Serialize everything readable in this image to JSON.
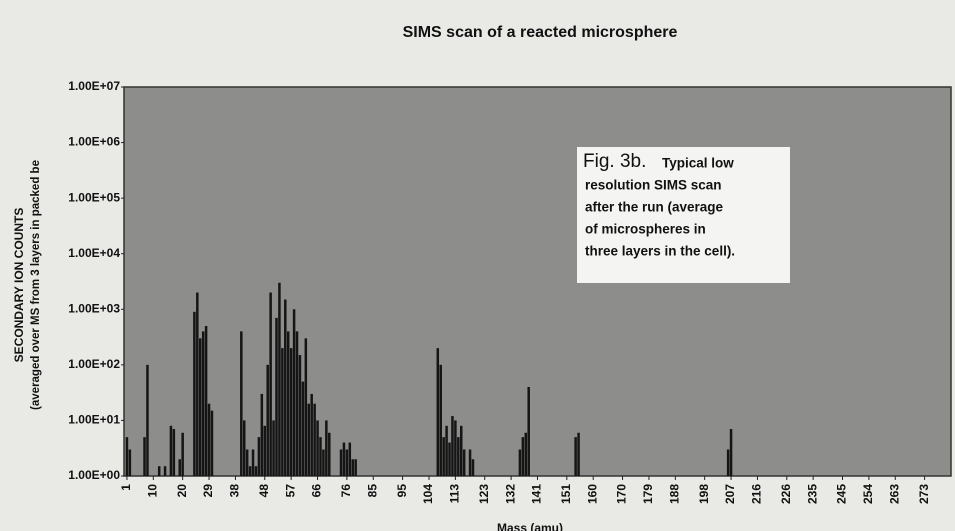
{
  "chart_data": {
    "type": "bar",
    "title": "SIMS scan of a reacted microsphere",
    "y_label": "SECONDARY ION COUNTS",
    "y_label_sub": "(averaged over MS from 3 layers in packed be",
    "x_label": "Mass (amu)",
    "annotation": {
      "heading": "Fig. 3b.",
      "lines": [
        "Typical low",
        "resolution SIMS scan",
        "after the run (average",
        "of  microspheres in",
        "three layers in the cell)."
      ]
    },
    "log_y": true,
    "grid": false,
    "color": "#151515",
    "background": "#8d8d8b",
    "xlim": [
      0,
      282
    ],
    "xticks": [
      1,
      10,
      20,
      29,
      38,
      48,
      57,
      66,
      76,
      85,
      95,
      104,
      113,
      123,
      132,
      141,
      151,
      160,
      170,
      179,
      188,
      198,
      207,
      216,
      226,
      235,
      245,
      254,
      263,
      273
    ],
    "ylim": [
      1,
      10000000
    ],
    "yticks": [
      {
        "value": 1,
        "label": "1.00E+00"
      },
      {
        "value": 10,
        "label": "1.00E+01"
      },
      {
        "value": 100,
        "label": "1.00E+02"
      },
      {
        "value": 1000,
        "label": "1.00E+03"
      },
      {
        "value": 10000,
        "label": "1.00E+04"
      },
      {
        "value": 100000,
        "label": "1.00E+05"
      },
      {
        "value": 1000000,
        "label": "1.00E+06"
      },
      {
        "value": 10000000,
        "label": "1.00E+07"
      }
    ],
    "x": [
      1,
      2,
      7,
      8,
      12,
      14,
      16,
      17,
      19,
      20,
      24,
      25,
      26,
      27,
      28,
      29,
      30,
      40,
      41,
      42,
      43,
      44,
      45,
      46,
      47,
      48,
      49,
      50,
      51,
      52,
      53,
      54,
      55,
      56,
      57,
      58,
      59,
      60,
      61,
      62,
      63,
      64,
      65,
      66,
      67,
      68,
      69,
      70,
      74,
      75,
      76,
      77,
      78,
      79,
      107,
      108,
      109,
      110,
      111,
      112,
      113,
      114,
      115,
      116,
      118,
      119,
      135,
      136,
      137,
      138,
      154,
      155,
      206,
      207
    ],
    "values": [
      5,
      3,
      5,
      100,
      1.5,
      1.5,
      8,
      7,
      2,
      6,
      900,
      2000,
      300,
      400,
      500,
      20,
      15,
      400,
      10,
      3,
      1.5,
      3,
      1.5,
      5,
      30,
      8,
      100,
      2000,
      10,
      700,
      3000,
      200,
      1500,
      400,
      200,
      1000,
      400,
      150,
      50,
      300,
      20,
      30,
      20,
      10,
      5,
      3,
      10,
      6,
      3,
      4,
      3,
      4,
      2,
      2,
      200,
      100,
      5,
      8,
      4,
      12,
      10,
      5,
      8,
      3,
      3,
      2,
      3,
      5,
      6,
      40,
      5,
      6,
      3,
      7
    ]
  }
}
